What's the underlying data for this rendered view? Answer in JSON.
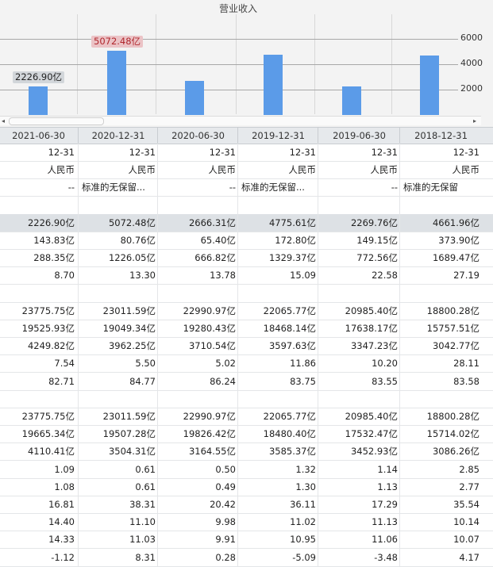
{
  "chart": {
    "title": "营业收入",
    "y_ticks": [
      "6000",
      "4000",
      "2000"
    ],
    "bar_labels": [
      {
        "text": "2226.90亿",
        "style": "gray"
      },
      {
        "text": "5072.48亿",
        "style": "red"
      }
    ],
    "scroll_left": "◂",
    "scroll_right": "▸"
  },
  "chart_data": {
    "type": "bar",
    "title": "营业收入",
    "categories": [
      "2021-06-30",
      "2020-12-31",
      "2020-06-30",
      "2019-12-31",
      "2019-06-30",
      "2018-12-31"
    ],
    "values": [
      2226.9,
      5072.48,
      2666.31,
      4775.61,
      2269.76,
      4661.96
    ],
    "ylim": [
      0,
      6000
    ],
    "yticks": [
      2000,
      4000,
      6000
    ],
    "grid": true,
    "bar_color": "#5b9be8"
  },
  "table": {
    "headers": [
      "2021-06-30",
      "2020-12-31",
      "2020-06-30",
      "2019-12-31",
      "2019-06-30",
      "2018-12-31"
    ],
    "rows": [
      {
        "cells": [
          "12-31",
          "12-31",
          "12-31",
          "12-31",
          "12-31",
          "12-31"
        ]
      },
      {
        "cells": [
          "人民币",
          "人民币",
          "人民币",
          "人民币",
          "人民币",
          "人民币"
        ]
      },
      {
        "cells": [
          "--",
          "标准的无保留...",
          "--",
          "标准的无保留...",
          "--",
          "标准的无保留"
        ]
      },
      {
        "cells": [
          "",
          "",
          "",
          "",
          "",
          ""
        ]
      },
      {
        "cells": [
          "2226.90亿",
          "5072.48亿",
          "2666.31亿",
          "4775.61亿",
          "2269.76亿",
          "4661.96亿"
        ],
        "highlight": true
      },
      {
        "cells": [
          "143.83亿",
          "80.76亿",
          "65.40亿",
          "172.80亿",
          "149.15亿",
          "373.90亿"
        ]
      },
      {
        "cells": [
          "288.35亿",
          "1226.05亿",
          "666.82亿",
          "1329.37亿",
          "772.56亿",
          "1689.47亿"
        ]
      },
      {
        "cells": [
          "8.70",
          "13.30",
          "13.78",
          "15.09",
          "22.58",
          "27.19"
        ]
      },
      {
        "cells": [
          "",
          "",
          "",
          "",
          "",
          ""
        ]
      },
      {
        "cells": [
          "23775.75亿",
          "23011.59亿",
          "22990.97亿",
          "22065.77亿",
          "20985.40亿",
          "18800.28亿"
        ]
      },
      {
        "cells": [
          "19525.93亿",
          "19049.34亿",
          "19280.43亿",
          "18468.14亿",
          "17638.17亿",
          "15757.51亿"
        ]
      },
      {
        "cells": [
          "4249.82亿",
          "3962.25亿",
          "3710.54亿",
          "3597.63亿",
          "3347.23亿",
          "3042.77亿"
        ]
      },
      {
        "cells": [
          "7.54",
          "5.50",
          "5.02",
          "11.86",
          "10.20",
          "28.11"
        ]
      },
      {
        "cells": [
          "82.71",
          "84.77",
          "86.24",
          "83.75",
          "83.55",
          "83.58"
        ]
      },
      {
        "cells": [
          "",
          "",
          "",
          "",
          "",
          ""
        ]
      },
      {
        "cells": [
          "23775.75亿",
          "23011.59亿",
          "22990.97亿",
          "22065.77亿",
          "20985.40亿",
          "18800.28亿"
        ]
      },
      {
        "cells": [
          "19665.34亿",
          "19507.28亿",
          "19826.42亿",
          "18480.40亿",
          "17532.47亿",
          "15714.02亿"
        ]
      },
      {
        "cells": [
          "4110.41亿",
          "3504.31亿",
          "3164.55亿",
          "3585.37亿",
          "3452.93亿",
          "3086.26亿"
        ]
      },
      {
        "cells": [
          "1.09",
          "0.61",
          "0.50",
          "1.32",
          "1.14",
          "2.85"
        ]
      },
      {
        "cells": [
          "1.08",
          "0.61",
          "0.49",
          "1.30",
          "1.13",
          "2.77"
        ]
      },
      {
        "cells": [
          "16.81",
          "38.31",
          "20.42",
          "36.11",
          "17.29",
          "35.54"
        ]
      },
      {
        "cells": [
          "14.40",
          "11.10",
          "9.98",
          "11.02",
          "11.13",
          "10.14"
        ]
      },
      {
        "cells": [
          "14.33",
          "11.03",
          "9.91",
          "10.95",
          "11.06",
          "10.07"
        ]
      },
      {
        "cells": [
          "-1.12",
          "8.31",
          "0.28",
          "-5.09",
          "-3.48",
          "4.17"
        ]
      }
    ]
  }
}
